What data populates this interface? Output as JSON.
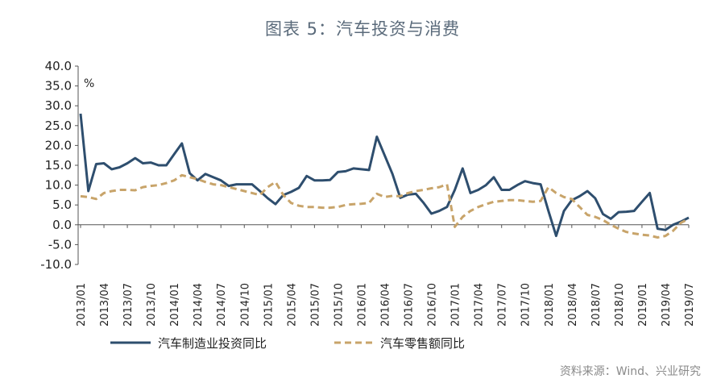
{
  "page": {
    "title": "图表 5：汽车投资与消费",
    "source": "资料来源：Wind、兴业研究"
  },
  "colors": {
    "series1": "#2e4e6e",
    "series2": "#c8a46a",
    "axis": "#555555"
  },
  "chart_data": {
    "type": "line",
    "unit": "%",
    "ylim": [
      -10,
      40
    ],
    "yticks": [
      "40.0",
      "35.0",
      "30.0",
      "25.0",
      "20.0",
      "15.0",
      "10.0",
      "5.0",
      "0.0",
      "-5.0",
      "-10.0"
    ],
    "grid": false,
    "legend_position": "bottom",
    "x": [
      "2013/01",
      "2013/02",
      "2013/03",
      "2013/04",
      "2013/05",
      "2013/06",
      "2013/07",
      "2013/08",
      "2013/09",
      "2013/10",
      "2013/11",
      "2013/12",
      "2014/01",
      "2014/02",
      "2014/03",
      "2014/04",
      "2014/05",
      "2014/06",
      "2014/07",
      "2014/08",
      "2014/09",
      "2014/10",
      "2014/11",
      "2014/12",
      "2015/01",
      "2015/02",
      "2015/03",
      "2015/04",
      "2015/05",
      "2015/06",
      "2015/07",
      "2015/08",
      "2015/09",
      "2015/10",
      "2015/11",
      "2015/12",
      "2016/01",
      "2016/02",
      "2016/03",
      "2016/04",
      "2016/05",
      "2016/06",
      "2016/07",
      "2016/08",
      "2016/09",
      "2016/10",
      "2016/11",
      "2016/12",
      "2017/01",
      "2017/02",
      "2017/03",
      "2017/04",
      "2017/05",
      "2017/06",
      "2017/07",
      "2017/08",
      "2017/09",
      "2017/10",
      "2017/11",
      "2017/12",
      "2018/01",
      "2018/02",
      "2018/03",
      "2018/04",
      "2018/05",
      "2018/06",
      "2018/07",
      "2018/08",
      "2018/09",
      "2018/10",
      "2018/11",
      "2018/12",
      "2019/01",
      "2019/02",
      "2019/03",
      "2019/04",
      "2019/05",
      "2019/06",
      "2019/07"
    ],
    "xtick_labels": [
      "2013/01",
      "2013/04",
      "2013/07",
      "2013/10",
      "2014/01",
      "2014/04",
      "2014/07",
      "2014/10",
      "2015/01",
      "2015/04",
      "2015/07",
      "2015/10",
      "2016/01",
      "2016/04",
      "2016/07",
      "2016/10",
      "2017/01",
      "2017/04",
      "2017/07",
      "2017/10",
      "2018/01",
      "2018/04",
      "2018/07",
      "2018/10",
      "2019/01",
      "2019/04",
      "2019/07"
    ],
    "series": [
      {
        "name": "汽车制造业投资同比",
        "style": "solid",
        "values": [
          28.0,
          8.5,
          15.3,
          15.5,
          14.0,
          14.5,
          15.5,
          16.8,
          15.5,
          15.7,
          15.0,
          15.0,
          17.8,
          20.5,
          13.0,
          11.2,
          12.8,
          12.0,
          11.2,
          9.8,
          10.2,
          10.2,
          10.2,
          8.5,
          6.7,
          5.2,
          7.5,
          8.3,
          9.3,
          12.3,
          11.2,
          11.2,
          11.3,
          13.3,
          13.5,
          14.2,
          14.0,
          13.8,
          22.2,
          17.5,
          12.8,
          6.8,
          7.6,
          7.8,
          5.5,
          2.8,
          3.5,
          4.5,
          8.8,
          14.2,
          8.0,
          8.8,
          10.0,
          12.0,
          8.8,
          8.8,
          10.0,
          11.0,
          10.5,
          10.2,
          3.5,
          -2.8,
          3.5,
          6.2,
          7.2,
          8.5,
          6.7,
          2.7,
          1.5,
          3.2,
          3.3,
          3.5,
          5.8,
          8.0,
          -1.0,
          -1.3,
          0.0,
          0.8,
          1.8
        ]
      },
      {
        "name": "汽车零售额同比",
        "style": "dashed",
        "values": [
          7.2,
          7.0,
          6.5,
          8.0,
          8.5,
          8.8,
          8.8,
          8.7,
          9.5,
          9.8,
          10.0,
          10.5,
          11.2,
          12.5,
          12.0,
          11.5,
          10.8,
          10.2,
          10.0,
          9.5,
          9.0,
          8.5,
          8.0,
          7.5,
          9.5,
          10.8,
          7.5,
          5.5,
          4.8,
          4.5,
          4.5,
          4.3,
          4.3,
          4.5,
          5.0,
          5.2,
          5.3,
          5.5,
          7.8,
          7.0,
          7.3,
          7.2,
          8.0,
          8.5,
          8.8,
          9.2,
          9.5,
          10.2,
          -0.5,
          2.0,
          3.5,
          4.5,
          5.2,
          5.8,
          6.0,
          6.2,
          6.2,
          6.0,
          5.8,
          6.0,
          9.5,
          8.0,
          7.0,
          6.5,
          4.5,
          2.5,
          2.0,
          1.2,
          0.0,
          -1.0,
          -1.8,
          -2.2,
          -2.5,
          -2.7,
          -3.2,
          -2.8,
          -1.5,
          0.5,
          1.5
        ]
      }
    ]
  }
}
